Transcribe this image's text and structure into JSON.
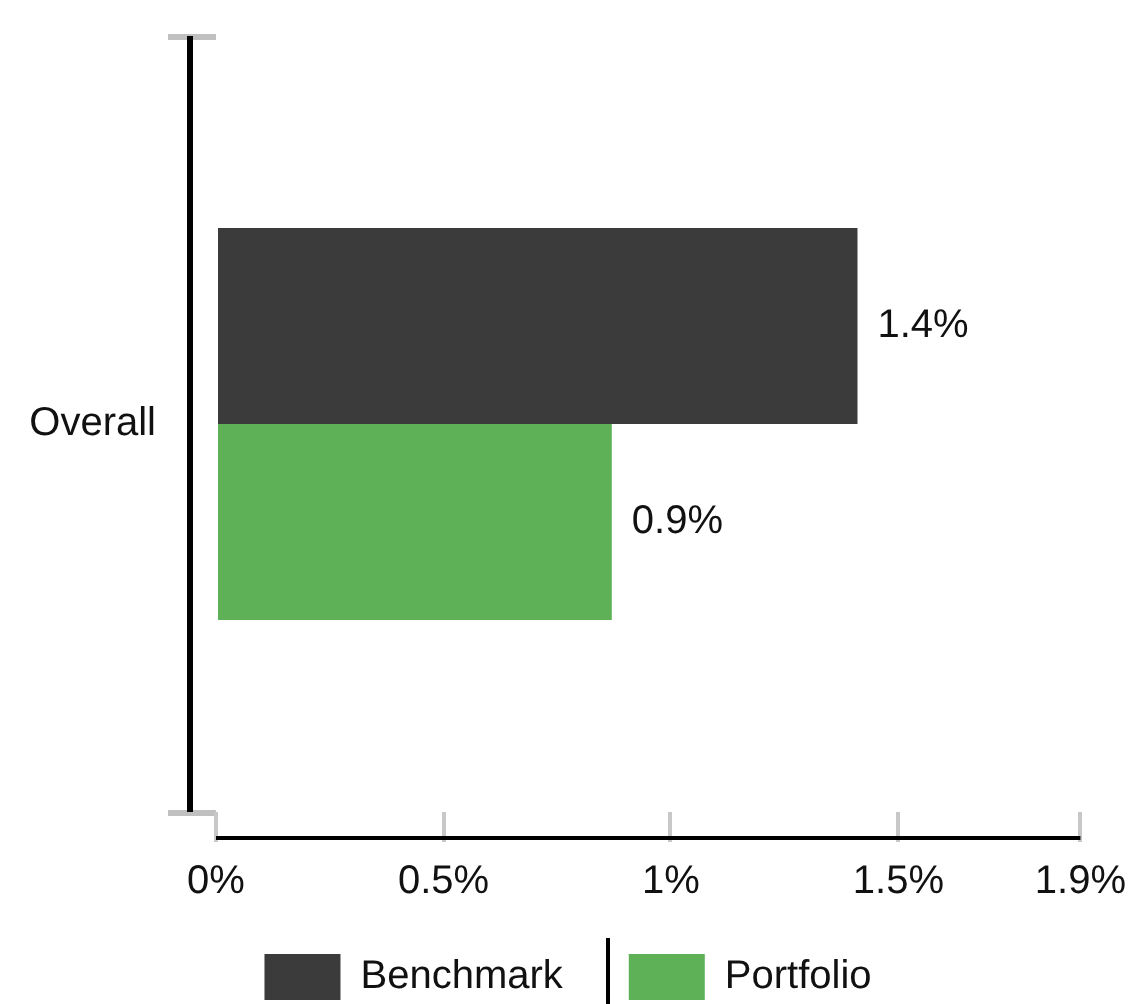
{
  "chart_data": {
    "type": "bar",
    "orientation": "horizontal",
    "categories": [
      "Overall"
    ],
    "series": [
      {
        "name": "Benchmark",
        "color": "#3b3b3b",
        "values": [
          1.41
        ],
        "value_labels": [
          "1.4%"
        ]
      },
      {
        "name": "Portfolio",
        "color": "#5eb157",
        "values": [
          0.87
        ],
        "value_labels": [
          "0.9%"
        ]
      }
    ],
    "xlim": [
      0,
      1.9
    ],
    "xticks": [
      {
        "value": 0,
        "label": "0%"
      },
      {
        "value": 0.5,
        "label": "0.5%"
      },
      {
        "value": 1,
        "label": "1%"
      },
      {
        "value": 1.5,
        "label": "1.5%"
      },
      {
        "value": 1.9,
        "label": "1.9%"
      }
    ],
    "legend": "bottom"
  }
}
